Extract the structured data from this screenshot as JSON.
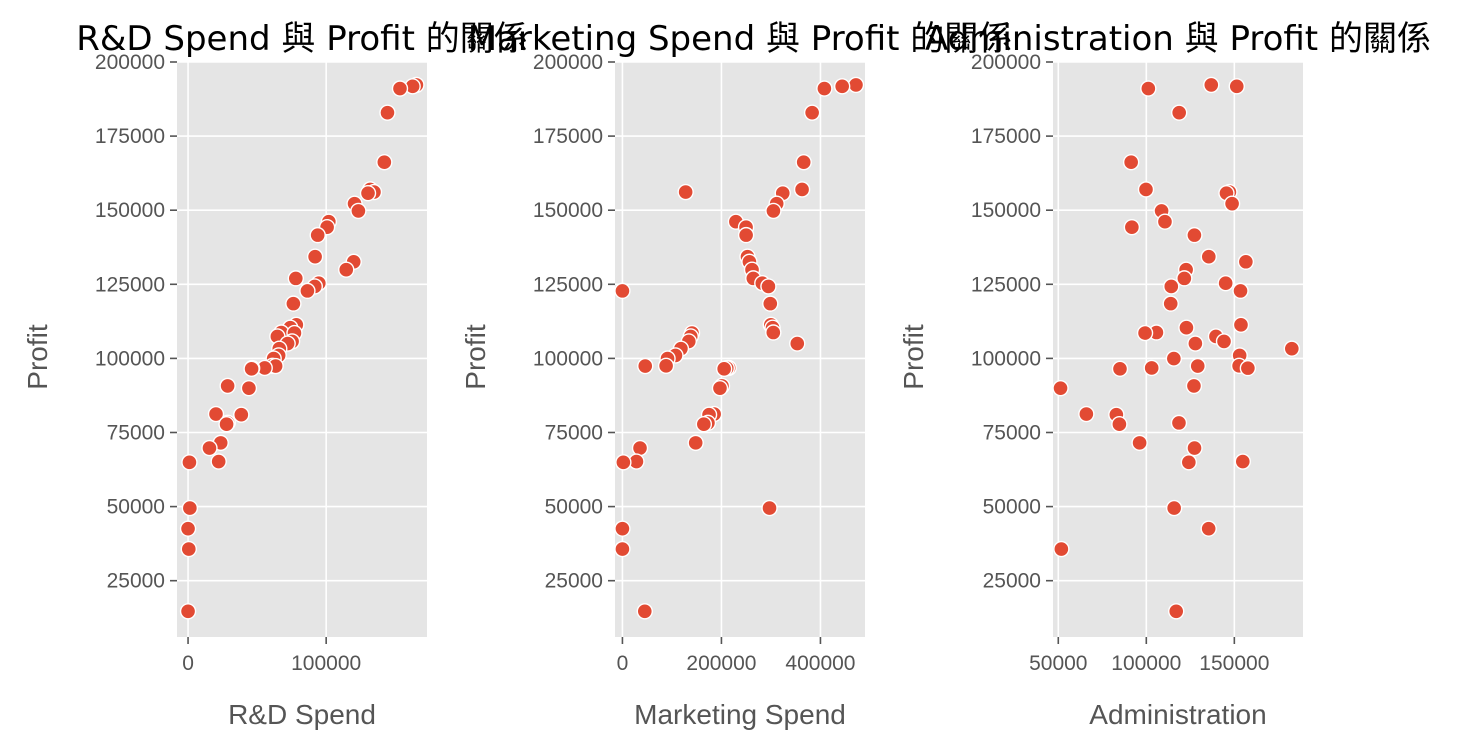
{
  "chart_data": [
    {
      "type": "scatter",
      "title": "R&D Spend 與 Profit 的關係",
      "xlabel": "R&D Spend",
      "ylabel": "Profit",
      "xlim": [
        -8000,
        173000
      ],
      "ylim": [
        6000,
        200000
      ],
      "xticks": [
        0,
        100000
      ],
      "yticks": [
        25000,
        50000,
        75000,
        100000,
        125000,
        150000,
        175000,
        200000
      ],
      "grid": true,
      "x": [
        165349,
        162598,
        153442,
        144372,
        142107,
        131877,
        134615,
        130298,
        120543,
        123335,
        101913,
        100672,
        93864,
        91992,
        119943,
        114524,
        78014,
        94657,
        91749,
        86420,
        76254,
        78389,
        73995,
        67533,
        77044,
        64665,
        75329,
        72108,
        66051,
        65605,
        61994,
        61136,
        63409,
        55494,
        46427,
        46014,
        28664,
        44070,
        20230,
        38558,
        28754,
        27893,
        23641,
        15506,
        22178,
        1001,
        1315,
        0,
        542,
        0
      ],
      "y": [
        192262,
        191792,
        191050,
        182902,
        166188,
        156991,
        156123,
        155753,
        152212,
        149760,
        146122,
        144259,
        141586,
        134307,
        132603,
        129917,
        126993,
        125371,
        124267,
        122777,
        118474,
        111314,
        110352,
        108734,
        108552,
        107404,
        105734,
        105008,
        103282,
        101004,
        99938,
        97484,
        97427,
        96779,
        96713,
        96480,
        90708,
        89950,
        81230,
        81006,
        78240,
        77799,
        71498,
        69759,
        65201,
        64927,
        49491,
        42560,
        35673,
        14681
      ]
    },
    {
      "type": "scatter",
      "title": "Marketing Spend 與 Profit 的關係",
      "xlabel": "Marketing Spend",
      "ylabel": "Profit",
      "xlim": [
        -15000,
        490000
      ],
      "ylim": [
        6000,
        200000
      ],
      "xticks": [
        0,
        200000,
        400000
      ],
      "yticks": [
        25000,
        50000,
        75000,
        100000,
        125000,
        150000,
        175000,
        200000
      ],
      "grid": true,
      "x": [
        471784,
        443899,
        407934,
        383200,
        366168,
        362861,
        127717,
        323877,
        311613,
        304982,
        229161,
        249745,
        249839,
        252665,
        256513,
        261776,
        264346,
        282574,
        294920,
        0,
        298664,
        299738,
        303320,
        304769,
        140574,
        137963,
        134051,
        353184,
        118148,
        107138,
        91131,
        88219,
        46086,
        214635,
        210798,
        205518,
        201127,
        197029,
        185266,
        174999,
        172795,
        164471,
        148001,
        35534,
        28334,
        1904,
        297114,
        0,
        0,
        45174
      ],
      "y": [
        192262,
        191792,
        191050,
        182902,
        166188,
        156991,
        156123,
        155753,
        152212,
        149760,
        146122,
        144259,
        141586,
        134307,
        132603,
        129917,
        126993,
        125371,
        124267,
        122777,
        118474,
        111314,
        110352,
        108734,
        108552,
        107404,
        105734,
        105008,
        103282,
        101004,
        99938,
        97484,
        97427,
        96779,
        96713,
        96480,
        90708,
        89950,
        81230,
        81006,
        78240,
        77799,
        71498,
        69759,
        65201,
        64927,
        49491,
        42560,
        35673,
        14681
      ]
    },
    {
      "type": "scatter",
      "title": "Administration 與 Profit 的關係",
      "xlabel": "Administration",
      "ylabel": "Profit",
      "xlim": [
        47000,
        189000
      ],
      "ylim": [
        6000,
        200000
      ],
      "xticks": [
        50000,
        100000,
        150000
      ],
      "yticks": [
        25000,
        50000,
        75000,
        100000,
        125000,
        150000,
        175000,
        200000
      ],
      "grid": true,
      "x": [
        136898,
        151378,
        101146,
        118672,
        91392,
        99815,
        147199,
        145530,
        148719,
        108679,
        110594,
        91791,
        127320,
        135495,
        156547,
        122617,
        121598,
        145077,
        114176,
        153514,
        113867,
        153773,
        122783,
        105751,
        99281,
        139553,
        144136,
        127865,
        182646,
        153032,
        115642,
        152702,
        129220,
        103057,
        157694,
        85047,
        127056,
        51283,
        65948,
        82982,
        118546,
        84711,
        96189,
        127382,
        154806,
        124153,
        115816,
        135427,
        51743,
        116984
      ],
      "y": [
        192262,
        191792,
        191050,
        182902,
        166188,
        156991,
        156123,
        155753,
        152212,
        149760,
        146122,
        144259,
        141586,
        134307,
        132603,
        129917,
        126993,
        125371,
        124267,
        122777,
        118474,
        111314,
        110352,
        108734,
        108552,
        107404,
        105734,
        105008,
        103282,
        101004,
        99938,
        97484,
        97427,
        96779,
        96713,
        96480,
        90708,
        89950,
        81230,
        81006,
        78240,
        77799,
        71498,
        69759,
        65201,
        64927,
        49491,
        42560,
        35673,
        14681
      ]
    }
  ],
  "colors": {
    "marker": "#e24a33",
    "panel_background": "#e5e5e5",
    "grid": "#ffffff",
    "text": "#555555"
  }
}
